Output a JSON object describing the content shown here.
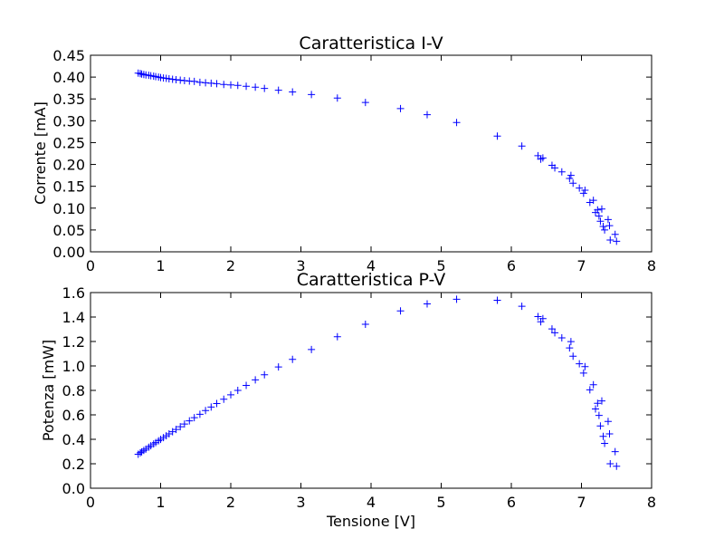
{
  "chart_data": [
    {
      "type": "scatter",
      "title": "Caratteristica I-V",
      "xlabel": "",
      "ylabel": "Corrente [mA]",
      "xlim": [
        0,
        8
      ],
      "ylim": [
        0,
        0.45
      ],
      "xticks": [
        "0",
        "1",
        "2",
        "3",
        "4",
        "5",
        "6",
        "7",
        "8"
      ],
      "yticks": [
        "0.00",
        "0.05",
        "0.10",
        "0.15",
        "0.20",
        "0.25",
        "0.30",
        "0.35",
        "0.40",
        "0.45"
      ],
      "grid": false,
      "marker": "+",
      "color": "#0000ff",
      "points": [
        [
          0.68,
          0.409
        ],
        [
          0.71,
          0.408
        ],
        [
          0.73,
          0.407
        ],
        [
          0.76,
          0.406
        ],
        [
          0.79,
          0.405
        ],
        [
          0.83,
          0.404
        ],
        [
          0.86,
          0.403
        ],
        [
          0.9,
          0.402
        ],
        [
          0.93,
          0.401
        ],
        [
          0.97,
          0.4
        ],
        [
          1.0,
          0.399
        ],
        [
          1.04,
          0.398
        ],
        [
          1.08,
          0.397
        ],
        [
          1.12,
          0.396
        ],
        [
          1.17,
          0.395
        ],
        [
          1.22,
          0.394
        ],
        [
          1.28,
          0.393
        ],
        [
          1.34,
          0.392
        ],
        [
          1.41,
          0.391
        ],
        [
          1.48,
          0.39
        ],
        [
          1.56,
          0.388
        ],
        [
          1.64,
          0.387
        ],
        [
          1.72,
          0.386
        ],
        [
          1.8,
          0.385
        ],
        [
          1.9,
          0.383
        ],
        [
          2.0,
          0.382
        ],
        [
          2.1,
          0.381
        ],
        [
          2.22,
          0.379
        ],
        [
          2.35,
          0.377
        ],
        [
          2.48,
          0.374
        ],
        [
          2.68,
          0.37
        ],
        [
          2.88,
          0.366
        ],
        [
          3.15,
          0.36
        ],
        [
          3.52,
          0.352
        ],
        [
          3.92,
          0.342
        ],
        [
          4.42,
          0.328
        ],
        [
          4.8,
          0.314
        ],
        [
          5.22,
          0.296
        ],
        [
          5.8,
          0.265
        ],
        [
          6.15,
          0.242
        ],
        [
          6.38,
          0.22
        ],
        [
          6.42,
          0.212
        ],
        [
          6.45,
          0.215
        ],
        [
          6.58,
          0.198
        ],
        [
          6.62,
          0.192
        ],
        [
          6.72,
          0.183
        ],
        [
          6.83,
          0.168
        ],
        [
          6.85,
          0.175
        ],
        [
          6.88,
          0.157
        ],
        [
          6.97,
          0.146
        ],
        [
          7.03,
          0.134
        ],
        [
          7.05,
          0.141
        ],
        [
          7.12,
          0.113
        ],
        [
          7.17,
          0.118
        ],
        [
          7.2,
          0.09
        ],
        [
          7.23,
          0.096
        ],
        [
          7.25,
          0.082
        ],
        [
          7.27,
          0.07
        ],
        [
          7.29,
          0.098
        ],
        [
          7.31,
          0.058
        ],
        [
          7.33,
          0.05
        ],
        [
          7.38,
          0.074
        ],
        [
          7.4,
          0.06
        ],
        [
          7.41,
          0.027
        ],
        [
          7.48,
          0.04
        ],
        [
          7.5,
          0.024
        ]
      ]
    },
    {
      "type": "scatter",
      "title": "Caratteristica P-V",
      "xlabel": "Tensione [V]",
      "ylabel": "Potenza [mW]",
      "xlim": [
        0,
        8
      ],
      "ylim": [
        0,
        1.6
      ],
      "xticks": [
        "0",
        "1",
        "2",
        "3",
        "4",
        "5",
        "6",
        "7",
        "8"
      ],
      "yticks": [
        "0.0",
        "0.2",
        "0.4",
        "0.6",
        "0.8",
        "1.0",
        "1.2",
        "1.4",
        "1.6"
      ],
      "grid": false,
      "marker": "+",
      "color": "#0000ff",
      "points": [
        [
          0.68,
          0.278
        ],
        [
          0.71,
          0.29
        ],
        [
          0.73,
          0.297
        ],
        [
          0.76,
          0.309
        ],
        [
          0.79,
          0.32
        ],
        [
          0.83,
          0.335
        ],
        [
          0.86,
          0.347
        ],
        [
          0.9,
          0.362
        ],
        [
          0.93,
          0.373
        ],
        [
          0.97,
          0.388
        ],
        [
          1.0,
          0.399
        ],
        [
          1.04,
          0.414
        ],
        [
          1.08,
          0.429
        ],
        [
          1.12,
          0.444
        ],
        [
          1.17,
          0.462
        ],
        [
          1.22,
          0.481
        ],
        [
          1.28,
          0.503
        ],
        [
          1.34,
          0.525
        ],
        [
          1.41,
          0.551
        ],
        [
          1.48,
          0.577
        ],
        [
          1.56,
          0.605
        ],
        [
          1.64,
          0.635
        ],
        [
          1.72,
          0.664
        ],
        [
          1.8,
          0.693
        ],
        [
          1.9,
          0.728
        ],
        [
          2.0,
          0.764
        ],
        [
          2.1,
          0.8
        ],
        [
          2.22,
          0.841
        ],
        [
          2.35,
          0.886
        ],
        [
          2.48,
          0.928
        ],
        [
          2.68,
          0.992
        ],
        [
          2.88,
          1.054
        ],
        [
          3.15,
          1.134
        ],
        [
          3.52,
          1.239
        ],
        [
          3.92,
          1.341
        ],
        [
          4.42,
          1.45
        ],
        [
          4.8,
          1.507
        ],
        [
          5.22,
          1.545
        ],
        [
          5.8,
          1.537
        ],
        [
          6.15,
          1.488
        ],
        [
          6.38,
          1.404
        ],
        [
          6.42,
          1.361
        ],
        [
          6.45,
          1.387
        ],
        [
          6.58,
          1.303
        ],
        [
          6.62,
          1.271
        ],
        [
          6.72,
          1.23
        ],
        [
          6.83,
          1.147
        ],
        [
          6.85,
          1.199
        ],
        [
          6.88,
          1.08
        ],
        [
          6.97,
          1.018
        ],
        [
          7.03,
          0.942
        ],
        [
          7.05,
          0.994
        ],
        [
          7.12,
          0.805
        ],
        [
          7.17,
          0.846
        ],
        [
          7.2,
          0.648
        ],
        [
          7.23,
          0.694
        ],
        [
          7.25,
          0.595
        ],
        [
          7.27,
          0.509
        ],
        [
          7.29,
          0.714
        ],
        [
          7.31,
          0.424
        ],
        [
          7.33,
          0.367
        ],
        [
          7.38,
          0.546
        ],
        [
          7.4,
          0.444
        ],
        [
          7.41,
          0.2
        ],
        [
          7.48,
          0.299
        ],
        [
          7.5,
          0.18
        ]
      ]
    }
  ]
}
